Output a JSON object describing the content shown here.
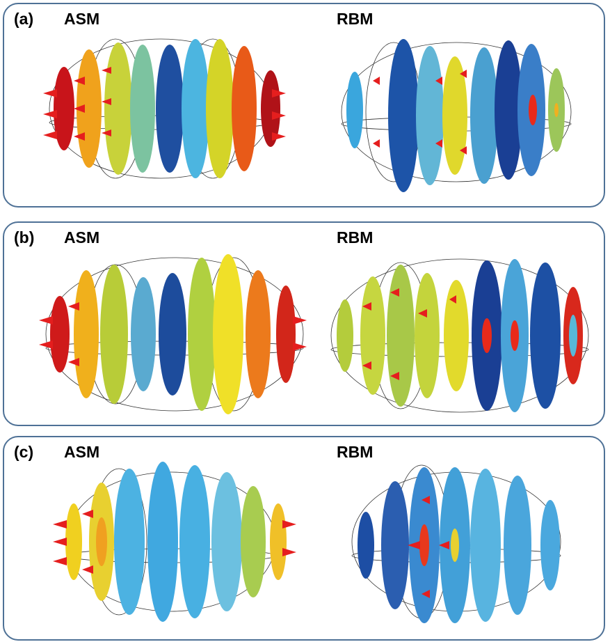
{
  "panels": [
    {
      "letter": "(a)",
      "left_title": "ASM",
      "right_title": "RBM",
      "asm_colors": [
        "#c8141a",
        "#f0a21c",
        "#c8d23a",
        "#7cc3a0",
        "#1f4fa0",
        "#4cb5e0",
        "#d4d428",
        "#e85a18",
        "#b01218"
      ],
      "rbm_colors": [
        "#3aa6dd",
        "#1d54a8",
        "#62b6d6",
        "#e0d82c",
        "#4aa0d0",
        "#1a3f94",
        "#3a7ec8",
        "#9cc65a"
      ]
    },
    {
      "letter": "(b)",
      "left_title": "ASM",
      "right_title": "RBM",
      "asm_colors": [
        "#cf1a1a",
        "#f0b01c",
        "#b8cc38",
        "#5aaad0",
        "#1d4c9c",
        "#b0d040",
        "#f0e028",
        "#ec7a1c",
        "#d2261a"
      ],
      "rbm_colors": [
        "#b4cc3c",
        "#c6d640",
        "#a8c848",
        "#c4d43c",
        "#e2da2c",
        "#1a3f94",
        "#4aa4d8",
        "#1d50a4",
        "#d8281c"
      ]
    },
    {
      "letter": "(c)",
      "left_title": "ASM",
      "right_title": "RBM",
      "asm_colors": [
        "#f0d020",
        "#e8d030",
        "#4cb2e2",
        "#40a8e0",
        "#48b0e2",
        "#6cc0e0",
        "#a8cc50",
        "#f0c028"
      ],
      "rbm_colors": [
        "#1d4ea4",
        "#2b5eb0",
        "#3a8ad0",
        "#42a0d8",
        "#58b4e0",
        "#4aa6dc",
        "#3c96d4",
        "#4aa8de"
      ]
    }
  ]
}
